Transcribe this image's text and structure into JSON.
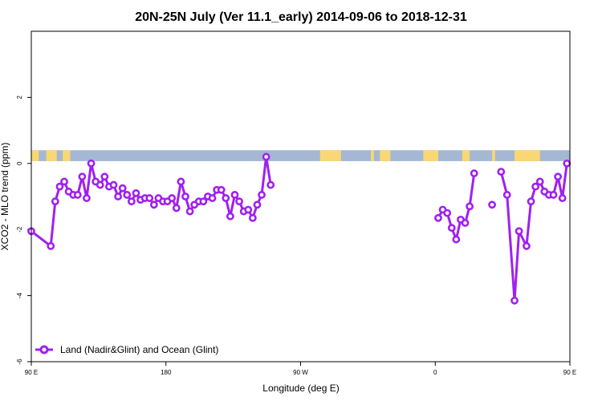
{
  "chart_data": {
    "type": "line",
    "title": "20N-25N July (Ver 11.1_early)   2014-09-06 to 2018-12-31",
    "xlabel": "Longitude (deg E)",
    "ylabel": "XCO2 - MLO trend (ppm)",
    "xlim": [
      90,
      450
    ],
    "ylim": [
      -6,
      4
    ],
    "x_ticks": [
      {
        "value": 90,
        "label": "90 E"
      },
      {
        "value": 180,
        "label": "180"
      },
      {
        "value": 270,
        "label": "90 W"
      },
      {
        "value": 360,
        "label": "0"
      },
      {
        "value": 450,
        "label": "90 E"
      },
      {
        "value": 540,
        "label": "180"
      }
    ],
    "y_ticks": [
      {
        "value": -6,
        "label": "-6"
      },
      {
        "value": -4,
        "label": "-4"
      },
      {
        "value": -2,
        "label": "-2"
      },
      {
        "value": 0,
        "label": "0"
      },
      {
        "value": 2,
        "label": "2"
      }
    ],
    "legend": {
      "placement": "bottom-left",
      "label": "Land (Nadir&Glint) and Ocean (Glint)"
    },
    "colors": {
      "series": "#a020f0",
      "ocean": "#a4b8d4",
      "land": "#f9d774",
      "frame": "#000000"
    },
    "land_mask_x": [
      [
        90,
        95
      ],
      [
        100,
        107
      ],
      [
        111,
        116
      ],
      [
        283,
        297
      ],
      [
        317,
        319
      ],
      [
        323,
        330
      ],
      [
        352,
        362
      ],
      [
        378,
        383
      ],
      [
        398,
        400
      ],
      [
        413,
        430
      ],
      [
        450,
        459
      ],
      [
        470,
        472
      ],
      [
        480,
        486
      ],
      [
        513,
        540
      ]
    ],
    "series": [
      {
        "name": "Land (Nadir&Glint) and Ocean (Glint)",
        "color": "#a020f0",
        "segments": [
          {
            "x": [
              90,
              103,
              106,
              109,
              112,
              115,
              118,
              121,
              124,
              127,
              130,
              133,
              136,
              139,
              142,
              145,
              148,
              151,
              154,
              157,
              160,
              163,
              166,
              169,
              172,
              175,
              178,
              181,
              184,
              187,
              190,
              193,
              196,
              199,
              202,
              205,
              208,
              211,
              214,
              217,
              220,
              223,
              226,
              229,
              232,
              235,
              238,
              241,
              244,
              247,
              250,
              253,
              256,
              259,
              262,
              265,
              268,
              271,
              274,
              277,
              280,
              283,
              286,
              289,
              292,
              295,
              298,
              301,
              304,
              307,
              310,
              313,
              316,
              319,
              322,
              325,
              328,
              331,
              334,
              337,
              340,
              343,
              346,
              349,
              352,
              355,
              358,
              361
            ],
            "y": [
              -2.05,
              -2.5,
              -1.15,
              -0.7,
              -0.55,
              -0.85,
              -0.95,
              -0.95,
              -0.4,
              -1.05,
              0,
              -0.55,
              -0.65,
              -0.4,
              -0.7,
              -0.65,
              -1.0,
              -0.75,
              -0.95,
              -1.15,
              -0.9,
              -1.1,
              -1.05,
              -1.05,
              -1.25,
              -1.05,
              -1.15,
              -1.15,
              -1.05,
              -1.35,
              -0.55,
              -1.0,
              -1.45,
              -1.25,
              -1.15,
              -1.15,
              -1.0,
              -1.05,
              -0.8,
              -0.8,
              -1.05,
              -1.6,
              -0.95,
              -1.15,
              -1.45,
              -1.4,
              -1.65,
              -1.25,
              -0.95,
              0.2,
              -0.65,
              null,
              null,
              null,
              null,
              null,
              null,
              null,
              null,
              null,
              null,
              null,
              null,
              null,
              null,
              null,
              null,
              null,
              null,
              null,
              null,
              null,
              null,
              null,
              null,
              null,
              null,
              null,
              null,
              null,
              null,
              null,
              null,
              null,
              null,
              null,
              null,
              null
            ]
          },
          {
            "x": [
              362,
              365,
              368,
              371,
              374,
              377,
              380,
              383,
              386,
              389,
              392
            ],
            "y": [
              -1.65,
              -1.4,
              -1.5,
              -1.95,
              -2.3,
              -1.7,
              -1.8,
              -1.3,
              -0.3,
              null,
              null
            ]
          },
          {
            "x": [
              398
            ],
            "y": [
              -1.25
            ]
          },
          {
            "x": [
              404,
              408,
              413,
              416,
              421,
              424,
              427,
              430,
              433,
              436,
              439,
              442,
              445,
              448,
              451
            ],
            "y": [
              -0.25,
              -0.95,
              -4.15,
              -2.05,
              -2.5,
              -1.15,
              -0.7,
              -0.55,
              -0.85,
              -0.95,
              -0.95,
              -0.4,
              -1.05,
              0,
              -0.55
            ]
          }
        ]
      }
    ]
  }
}
